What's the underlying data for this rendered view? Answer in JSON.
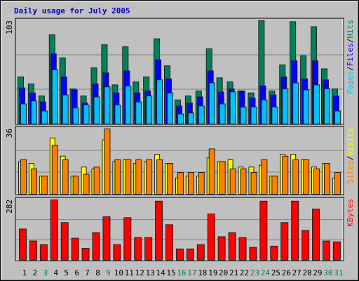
{
  "chart_data": {
    "type": "bar",
    "title": "Daily usage for July 2005",
    "categories": [
      "1",
      "2",
      "3",
      "4",
      "5",
      "6",
      "7",
      "8",
      "9",
      "10",
      "11",
      "12",
      "13",
      "14",
      "15",
      "16",
      "17",
      "18",
      "19",
      "20",
      "21",
      "22",
      "23",
      "24",
      "25",
      "26",
      "27",
      "28",
      "29",
      "30",
      "31"
    ],
    "label_colors": [
      "#000000",
      "#000000",
      "#008040",
      "#000000",
      "#000000",
      "#000000",
      "#000000",
      "#000000",
      "#008040",
      "#000000",
      "#000000",
      "#000000",
      "#000000",
      "#000000",
      "#000000",
      "#008040",
      "#008040",
      "#000000",
      "#000000",
      "#000000",
      "#000000",
      "#000000",
      "#008040",
      "#008040",
      "#000000",
      "#000000",
      "#000000",
      "#000000",
      "#000000",
      "#008040",
      "#008040"
    ],
    "legend_separator": "/",
    "panels": [
      {
        "ylim": [
          0,
          103
        ],
        "yticks": [
          103
        ],
        "series": [
          {
            "name": "Hits",
            "color": "#00805c",
            "values": [
              47,
              40,
              28,
              89,
              66,
              35,
              28,
              56,
              79,
              39,
              77,
              42,
              47,
              85,
              58,
              24,
              28,
              33,
              75,
              46,
              42,
              33,
              31,
              103,
              33,
              59,
              102,
              68,
              97,
              55,
              35
            ]
          },
          {
            "name": "Files",
            "color": "#0000ff",
            "values": [
              36,
              31,
              22,
              70,
              47,
              34,
              21,
              40,
              51,
              31,
              53,
              31,
              33,
              64,
              45,
              18,
              21,
              27,
              53,
              32,
              35,
              33,
              26,
              38,
              29,
              47,
              63,
              45,
              63,
              44,
              28
            ]
          },
          {
            "name": "Pages",
            "color": "#00c0ff",
            "values": [
              20,
              23,
              13,
              54,
              29,
              16,
              19,
              27,
              37,
              19,
              38,
              22,
              28,
              44,
              31,
              10,
              11,
              18,
              41,
              20,
              32,
              17,
              17,
              24,
              17,
              35,
              41,
              34,
              39,
              35,
              13
            ]
          }
        ]
      },
      {
        "ylim": [
          0,
          36
        ],
        "yticks": [
          36
        ],
        "series": [
          {
            "name": "Visits",
            "color": "#ffff00",
            "values": [
              18,
              17,
              10,
              31,
              21,
              10,
              15,
              14,
              30,
              18,
              19,
              17,
              18,
              22,
              17,
              9,
              10,
              10,
              20,
              18,
              19,
              15,
              15,
              16,
              10,
              22,
              22,
              19,
              15,
              17,
              9
            ]
          },
          {
            "name": "Sites",
            "color": "#ff8000",
            "values": [
              19,
              14,
              10,
              27,
              19,
              10,
              11,
              15,
              36,
              19,
              19,
              19,
              19,
              19,
              17,
              12,
              12,
              12,
              25,
              18,
              14,
              14,
              12,
              19,
              10,
              21,
              19,
              19,
              14,
              17,
              12
            ]
          }
        ]
      },
      {
        "ylim": [
          0,
          282
        ],
        "yticks": [
          282
        ],
        "series": [
          {
            "name": "KBytes",
            "color": "#ff0000",
            "values": [
              146,
              90,
              73,
              282,
              176,
              103,
              56,
              129,
              203,
              73,
              199,
              106,
              106,
              276,
              166,
              53,
              53,
              73,
              216,
              110,
              129,
              106,
              60,
              276,
              66,
              176,
              276,
              139,
              239,
              90,
              86
            ]
          }
        ]
      }
    ]
  }
}
